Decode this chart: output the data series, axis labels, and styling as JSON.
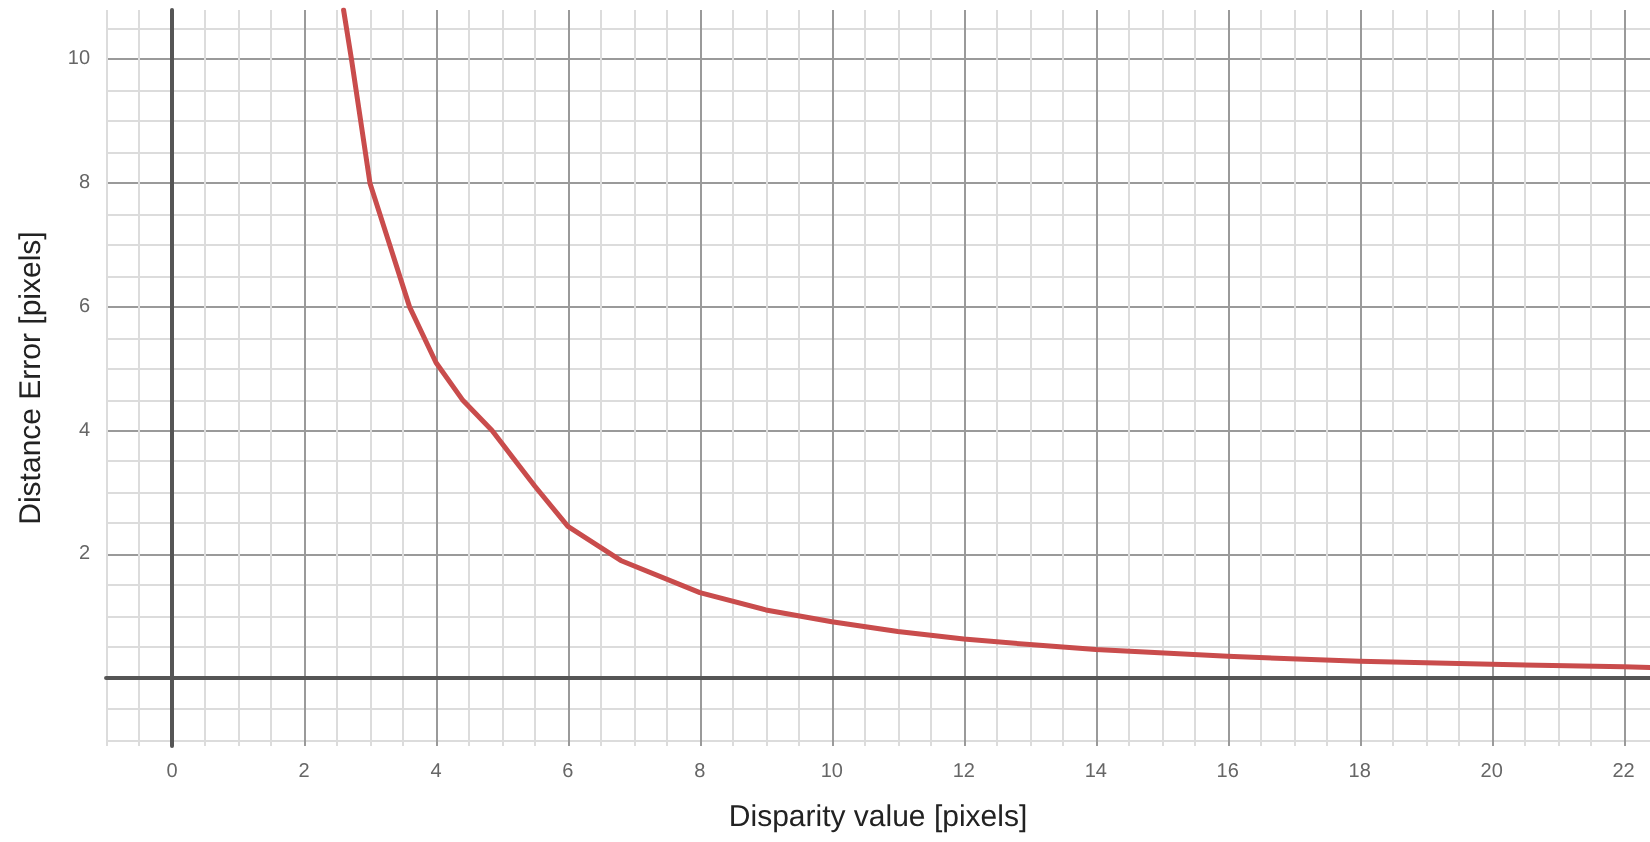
{
  "chart_data": {
    "type": "line",
    "xlabel": "Disparity value [pixels]",
    "ylabel": "Distance Error [pixels]",
    "x": [
      2.6,
      2.72,
      3.0,
      3.3,
      3.6,
      4.0,
      4.4,
      4.85,
      5.5,
      6.0,
      6.8,
      8,
      9,
      10,
      11,
      12,
      13,
      14,
      16,
      18,
      20,
      22,
      22.4
    ],
    "series": [
      {
        "color": "#c94c4c",
        "values": [
          10.8,
          10,
          8,
          7,
          6,
          5.1,
          4.5,
          4,
          3.1,
          2.45,
          1.9,
          1.38,
          1.1,
          0.91,
          0.75,
          0.63,
          0.54,
          0.46,
          0.35,
          0.27,
          0.22,
          0.18,
          0.17
        ]
      }
    ],
    "xlim": [
      -1,
      22.4
    ],
    "ylim": [
      -1.1,
      10.8
    ],
    "xticks": [
      0,
      2,
      4,
      6,
      8,
      10,
      12,
      14,
      16,
      18,
      20,
      22
    ],
    "yticks": [
      2,
      4,
      6,
      8,
      10
    ],
    "grid": true,
    "marker": "none",
    "line_style": "solid"
  }
}
